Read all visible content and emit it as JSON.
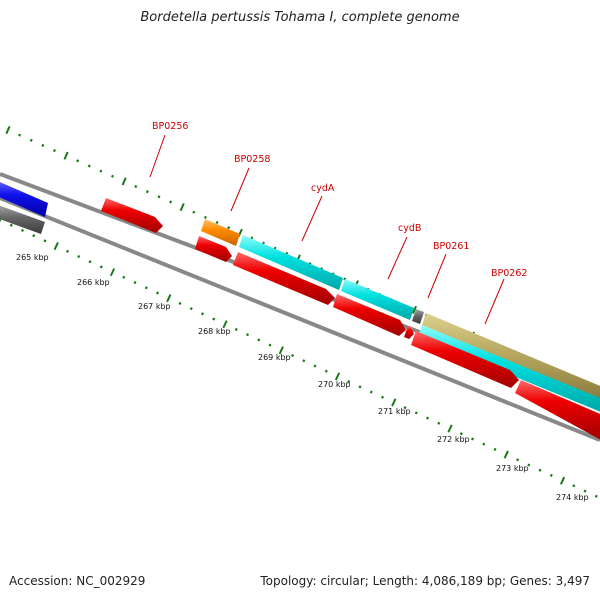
{
  "title": "Bordetella pertussis Tohama I, complete genome",
  "footer": {
    "accession": "Accession: NC_002929",
    "summary": "Topology: circular; Length: 4,086,189 bp; Genes: 3,497"
  },
  "gene_labels": [
    {
      "name": "BP0256"
    },
    {
      "name": "BP0258"
    },
    {
      "name": "cydA"
    },
    {
      "name": "cydB"
    },
    {
      "name": "BP0261"
    },
    {
      "name": "BP0262"
    }
  ],
  "kbp_ticks": [
    "265 kbp",
    "266 kbp",
    "267 kbp",
    "268 kbp",
    "269 kbp",
    "270 kbp",
    "271 kbp",
    "272 kbp",
    "273 kbp",
    "274 kbp"
  ],
  "colors": {
    "cds": "#ee0000",
    "orange": "#ff8c00",
    "cyan": "#00e5e5",
    "khaki": "#b8a860",
    "blue": "#1010ee",
    "gray": "#666666",
    "tick": "#1a7a1a",
    "label": "#cc0000"
  }
}
